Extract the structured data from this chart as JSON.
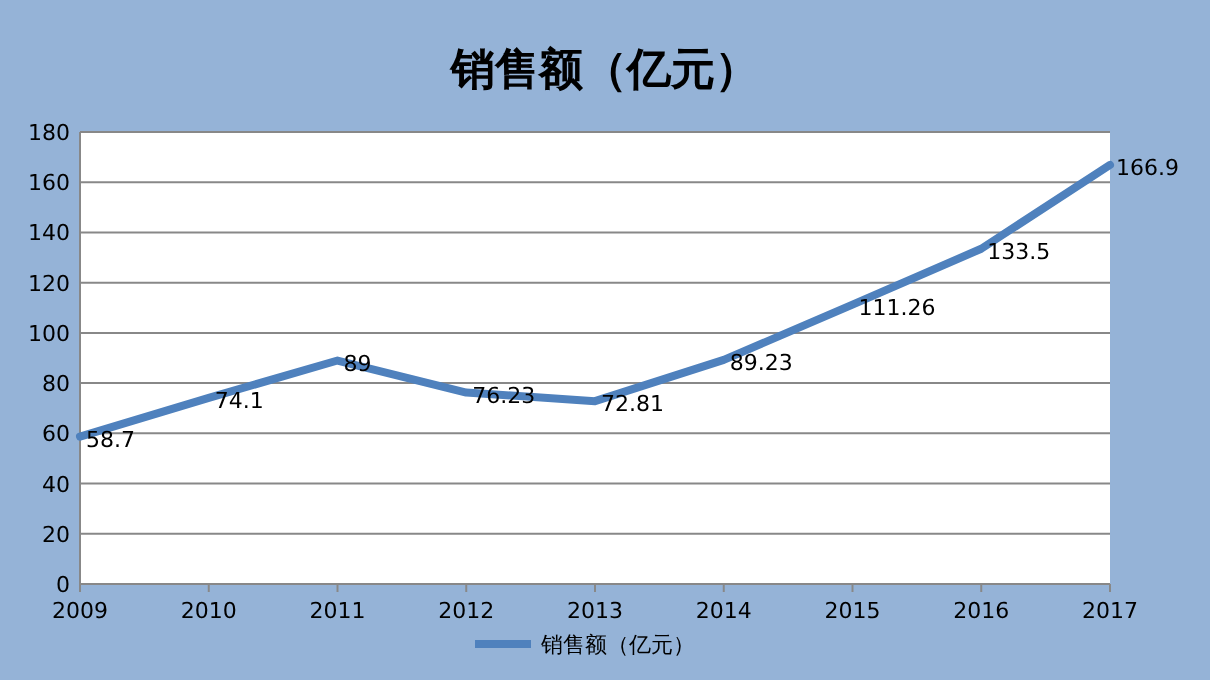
{
  "chart_data": {
    "type": "line",
    "title": "销售额（亿元）",
    "categories": [
      "2009",
      "2010",
      "2011",
      "2012",
      "2013",
      "2014",
      "2015",
      "2016",
      "2017"
    ],
    "series": [
      {
        "name": "销售额（亿元）",
        "color": "#4f81bd",
        "values": [
          58.7,
          74.1,
          89,
          76.23,
          72.81,
          89.23,
          111.26,
          133.5,
          166.9
        ]
      }
    ],
    "ylim": [
      0,
      180
    ],
    "yticks": [
      0,
      20,
      40,
      60,
      80,
      100,
      120,
      140,
      160,
      180
    ],
    "grid": "y",
    "legend": "bottom",
    "data_labels": true
  }
}
